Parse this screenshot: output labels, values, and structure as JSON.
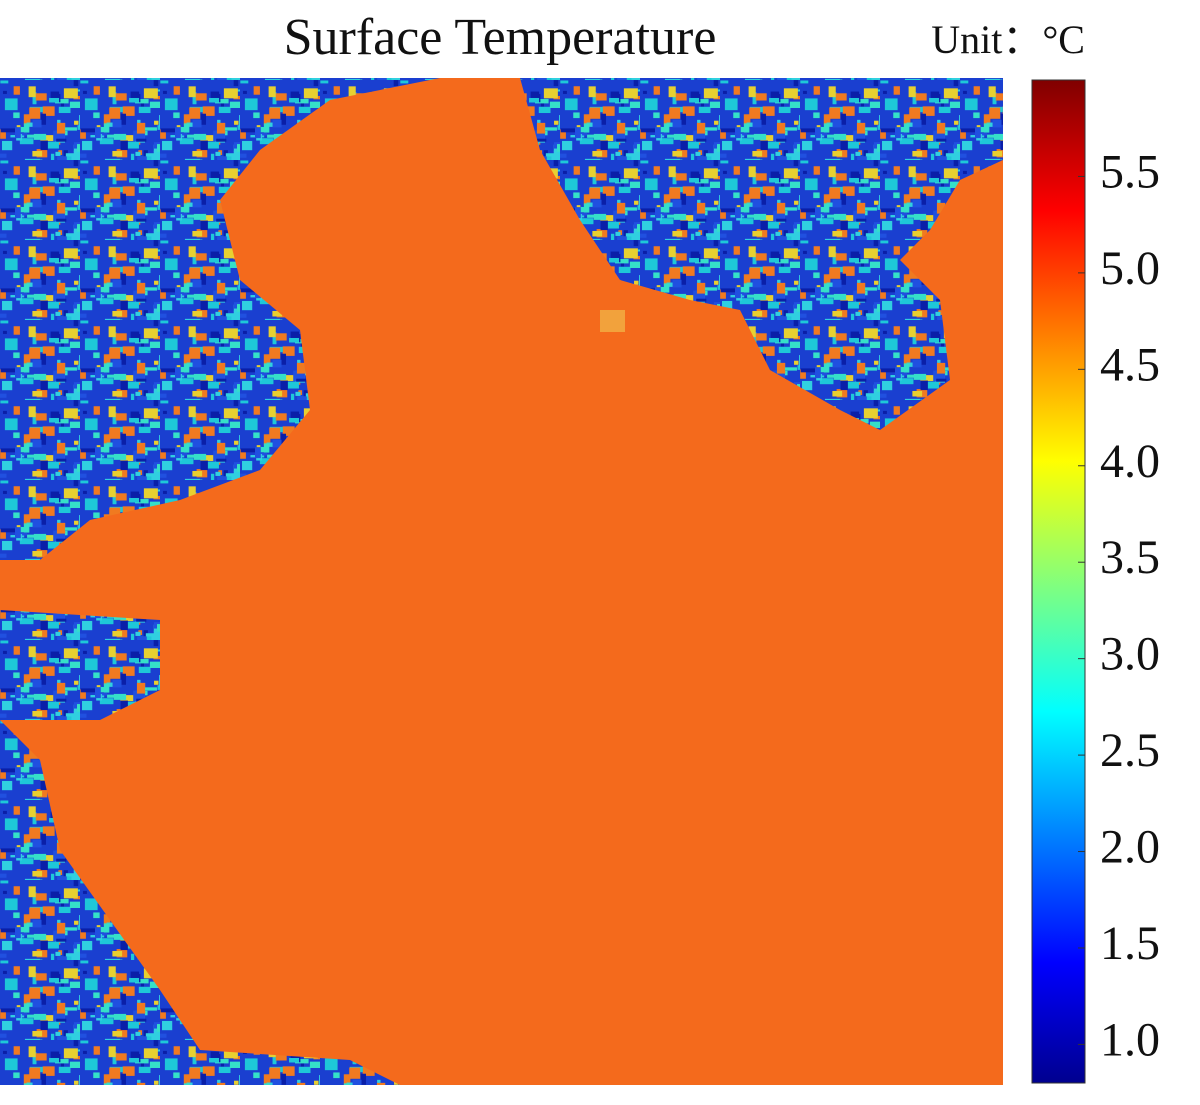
{
  "title": "Surface Temperature",
  "unit_label": "Unit：°C",
  "colorbar": {
    "clim": [
      0.8,
      6.0
    ],
    "ticks": [
      {
        "value": 1.0,
        "label": "1.0"
      },
      1.5,
      {
        "value": 2.0,
        "label": "2.0"
      },
      2.5,
      {
        "value": 3.0,
        "label": "3.0"
      },
      3.5,
      {
        "value": 4.0,
        "label": "4.0"
      },
      4.5,
      {
        "value": 5.0,
        "label": "5.0"
      },
      5.5
    ]
  }
}
